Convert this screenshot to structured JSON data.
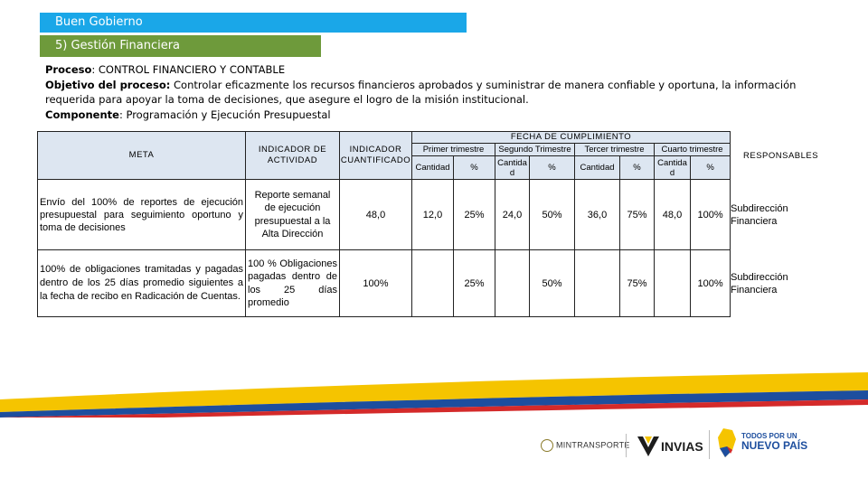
{
  "banners": {
    "section": "Buen Gobierno",
    "subsection": "5) Gestión Financiera"
  },
  "intro": {
    "proceso_label": "Proceso",
    "proceso_value": ": CONTROL FINANCIERO Y CONTABLE",
    "objetivo_label": "Objetivo del proceso:",
    "objetivo_value": " Controlar eficazmente los recursos financieros aprobados y suministrar de manera confiable y oportuna, la información requerida para apoyar la toma de decisiones, que asegure el logro de la misión institucional.",
    "componente_label": "Componente",
    "componente_value": ": Programación y Ejecución Presupuestal"
  },
  "table": {
    "headers": {
      "meta": "META",
      "indicador_actividad": "INDICADOR DE ACTIVIDAD",
      "indicador_cuantificado": "INDICADOR CUANTIFICADO",
      "fecha": "FECHA DE CUMPLIMIENTO",
      "trimestres": [
        "Primer trimestre",
        "Segundo Trimestre",
        "Tercer trimestre",
        "Cuarto trimestre"
      ],
      "cantidad": "Cantidad",
      "cantidad_split": "Cantida d",
      "pct": "%",
      "responsables": "RESPONSABLES"
    },
    "rows": [
      {
        "meta": "Envío del 100% de reportes de ejecución presupuestal para seguimiento oportuno y toma de decisiones",
        "indicador": "Reporte semanal de ejecución presupuestal a la Alta Dirección",
        "cuantificado": "48,0",
        "q": [
          "12,0",
          "25%",
          "24,0",
          "50%",
          "36,0",
          "75%",
          "48,0",
          "100%"
        ],
        "responsable": "Subdirección Financiera"
      },
      {
        "meta": "100% de obligaciones tramitadas y pagadas dentro de los 25 días promedio siguientes a la fecha de recibo en Radicación de Cuentas.",
        "indicador": "100 % Obligaciones pagadas dentro de los 25 días promedio",
        "cuantificado": "100%",
        "q": [
          "",
          "25%",
          "",
          "50%",
          "",
          "75%",
          "",
          "100%"
        ],
        "responsable": "Subdirección Financiera"
      }
    ]
  },
  "footer": {
    "logo1": "MINTRANSPORTE",
    "logo2": "INVIAS",
    "logo3_line1": "TODOS POR UN",
    "logo3_line2": "NUEVO PAÍS"
  },
  "colors": {
    "banner1": "#1aa7e8",
    "banner2": "#6e9a3b",
    "header_fill": "#dde6f1",
    "flag_yellow": "#f5c400",
    "flag_blue": "#1d4e9e",
    "flag_red": "#d42a2a"
  }
}
